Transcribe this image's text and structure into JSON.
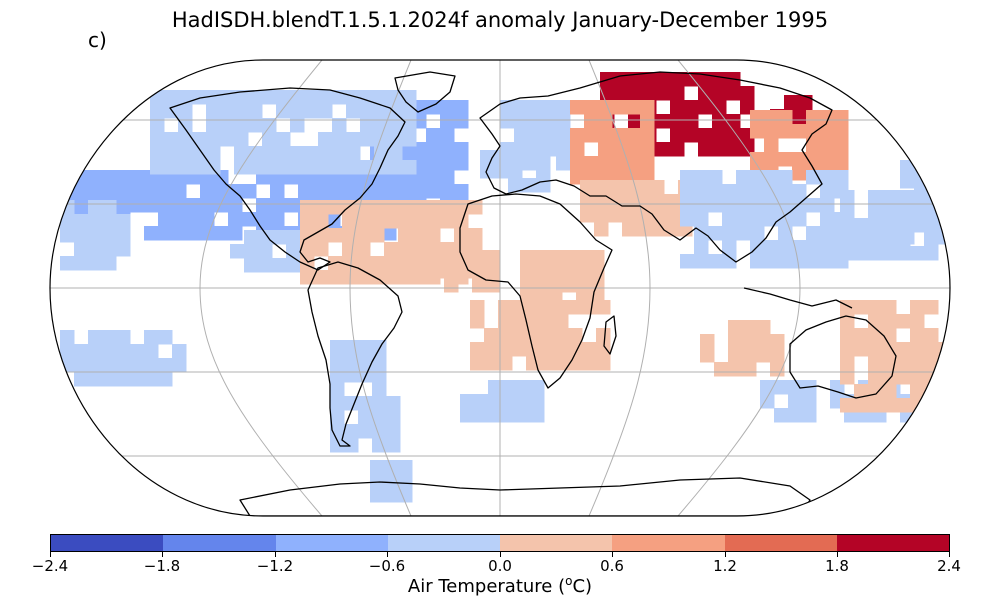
{
  "title": "HadISDH.blendT.1.5.1.2024f anomaly January-December 1995",
  "panel_label": "c)",
  "projection": "Robinson",
  "gridlines": true,
  "colorbar": {
    "label_prefix": "Air Temperature (",
    "label_sup": "o",
    "label_suffix": "C)",
    "ticks": [
      "−2.4",
      "−1.8",
      "−1.2",
      "−0.6",
      "0.0",
      "0.6",
      "1.2",
      "1.8",
      "2.4"
    ],
    "bounds": [
      -2.4,
      -1.8,
      -1.2,
      -0.6,
      0.0,
      0.6,
      1.2,
      1.8,
      2.4
    ],
    "colors": [
      "#3b4cc0",
      "#6485ec",
      "#8fb1fd",
      "#b8d0f9",
      "#f4c4ac",
      "#f5a081",
      "#e36b53",
      "#b40426"
    ]
  },
  "colors": {
    "ocean_missing": "#ffffff",
    "coastline": "#000000",
    "gridline": "#b0b0b0"
  },
  "regions": [
    {
      "name": "north-atlantic-band",
      "anomaly": -0.9
    },
    {
      "name": "north-america",
      "anomaly": -0.3
    },
    {
      "name": "europe",
      "anomaly": -0.3
    },
    {
      "name": "siberia",
      "anomaly": 2.1
    },
    {
      "name": "northern-asia",
      "anomaly": 0.9
    },
    {
      "name": "central-asia",
      "anomaly": 0.3
    },
    {
      "name": "east-asia",
      "anomaly": -0.3
    },
    {
      "name": "tropical-atlantic",
      "anomaly": 0.3
    },
    {
      "name": "africa-south",
      "anomaly": 0.3
    },
    {
      "name": "south-america",
      "anomaly": -0.3
    },
    {
      "name": "southern-ocean",
      "anomaly": -0.3
    },
    {
      "name": "australia",
      "anomaly": 0.3
    },
    {
      "name": "north-pacific",
      "anomaly": -0.6
    }
  ]
}
